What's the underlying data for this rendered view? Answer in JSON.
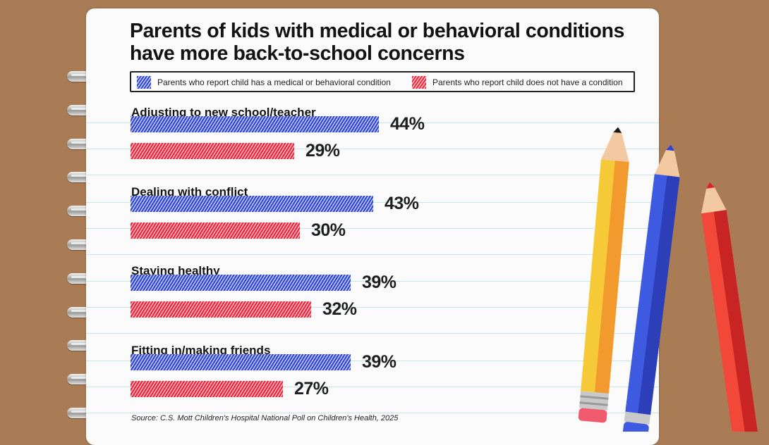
{
  "colors": {
    "with_condition": "#2f45d8",
    "without_condition": "#f0233a",
    "paper": "#fbfbfb",
    "background": "#a97c55"
  },
  "chart_data": {
    "type": "bar",
    "orientation": "horizontal",
    "title": "Parents of kids with medical or behavioral conditions have more back-to-school concerns",
    "categories": [
      "Adjusting to new school/teacher",
      "Dealing with conflict",
      "Staying healthy",
      "Fitting in/making friends"
    ],
    "series": [
      {
        "name": "Parents who report child has a medical or behavioral condition",
        "values": [
          44,
          43,
          39,
          39
        ],
        "labels": [
          "44%",
          "43%",
          "39%",
          "39%"
        ]
      },
      {
        "name": "Parents who report child does not have a condition",
        "values": [
          29,
          30,
          32,
          27
        ],
        "labels": [
          "29%",
          "30%",
          "32%",
          "27%"
        ]
      }
    ],
    "unit": "%",
    "xlim": [
      0,
      100
    ],
    "legend_position": "top",
    "grid": false,
    "source": "Source: C.S. Mott Children's Hospital National Poll on Children's Health, 2025"
  }
}
